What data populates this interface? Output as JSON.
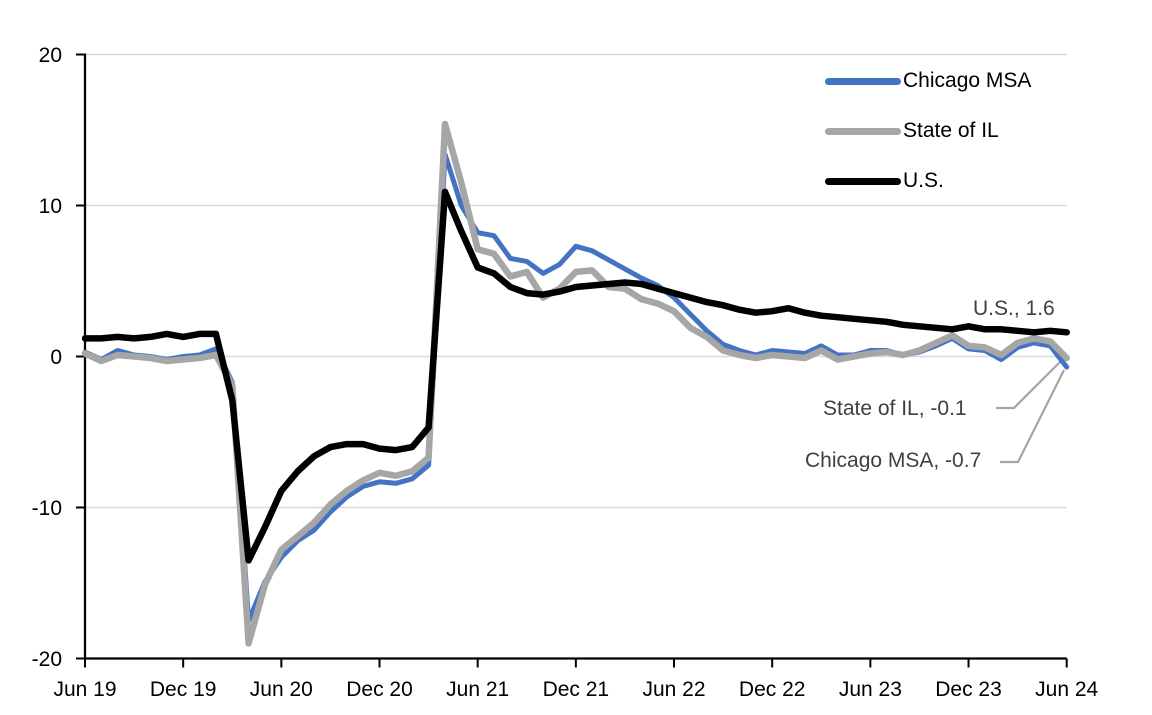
{
  "chart_data": {
    "type": "line",
    "title": "",
    "x_frequency": "monthly",
    "x_range": [
      "Jun 2019",
      "Jun 2024"
    ],
    "x_tick_labels": [
      "Jun 19",
      "Dec 19",
      "Jun 20",
      "Dec 20",
      "Jun 21",
      "Dec 21",
      "Jun 22",
      "Dec 22",
      "Jun 23",
      "Dec 23",
      "Jun 24"
    ],
    "ylim": [
      -20,
      20
    ],
    "yticks": [
      20,
      10,
      0,
      -10,
      -20
    ],
    "grid": true,
    "legend_position": "top-right",
    "series": [
      {
        "name": "Chicago MSA",
        "color": "#4472C4",
        "line_width": 5,
        "end_value": -0.7,
        "values": [
          0.3,
          -0.2,
          0.4,
          0.1,
          0.0,
          -0.2,
          0.0,
          0.1,
          0.5,
          -1.7,
          -17.5,
          -14.9,
          -13.3,
          -12.2,
          -11.5,
          -10.3,
          -9.3,
          -8.6,
          -8.3,
          -8.4,
          -8.1,
          -7.2,
          13.4,
          10.0,
          8.2,
          8.0,
          6.5,
          6.3,
          5.5,
          6.1,
          7.3,
          7.0,
          6.4,
          5.8,
          5.2,
          4.7,
          3.9,
          2.8,
          1.7,
          0.8,
          0.4,
          0.1,
          0.4,
          0.3,
          0.2,
          0.7,
          0.1,
          0.1,
          0.4,
          0.4,
          0.1,
          0.3,
          0.7,
          1.2,
          0.5,
          0.4,
          -0.2,
          0.6,
          0.9,
          0.7,
          -0.7
        ]
      },
      {
        "name": "State of IL",
        "color": "#A6A6A6",
        "line_width": 6.5,
        "end_value": -0.1,
        "values": [
          0.2,
          -0.3,
          0.1,
          0.0,
          -0.1,
          -0.3,
          -0.2,
          -0.1,
          0.1,
          -1.9,
          -19.0,
          -15.1,
          -12.8,
          -11.9,
          -11.0,
          -9.8,
          -8.9,
          -8.2,
          -7.7,
          -7.9,
          -7.6,
          -6.7,
          15.4,
          11.5,
          7.1,
          6.8,
          5.3,
          5.6,
          3.9,
          4.5,
          5.6,
          5.7,
          4.6,
          4.5,
          3.8,
          3.5,
          3.0,
          1.9,
          1.3,
          0.4,
          0.1,
          -0.1,
          0.1,
          0.0,
          -0.1,
          0.4,
          -0.2,
          0.0,
          0.2,
          0.3,
          0.1,
          0.4,
          0.9,
          1.4,
          0.7,
          0.6,
          0.1,
          0.9,
          1.2,
          1.0,
          -0.1
        ]
      },
      {
        "name": "U.S.",
        "color": "#000000",
        "line_width": 6.5,
        "end_value": 1.6,
        "values": [
          1.2,
          1.2,
          1.3,
          1.2,
          1.3,
          1.5,
          1.3,
          1.5,
          1.5,
          -2.9,
          -13.5,
          -11.3,
          -8.9,
          -7.6,
          -6.6,
          -6.0,
          -5.8,
          -5.8,
          -6.1,
          -6.2,
          -6.0,
          -4.7,
          10.9,
          8.3,
          5.9,
          5.5,
          4.6,
          4.2,
          4.1,
          4.3,
          4.6,
          4.7,
          4.8,
          4.9,
          4.8,
          4.5,
          4.2,
          3.9,
          3.6,
          3.4,
          3.1,
          2.9,
          3.0,
          3.2,
          2.9,
          2.7,
          2.6,
          2.5,
          2.4,
          2.3,
          2.1,
          2.0,
          1.9,
          1.8,
          2.0,
          1.8,
          1.8,
          1.7,
          1.6,
          1.7,
          1.6
        ]
      }
    ],
    "annotations": [
      {
        "text": "U.S., 1.6"
      },
      {
        "text": "State of IL, -0.1"
      },
      {
        "text": "Chicago MSA, -0.7"
      }
    ],
    "annotation_color": "#404040",
    "leader_line_color": "#a6a6a6"
  }
}
